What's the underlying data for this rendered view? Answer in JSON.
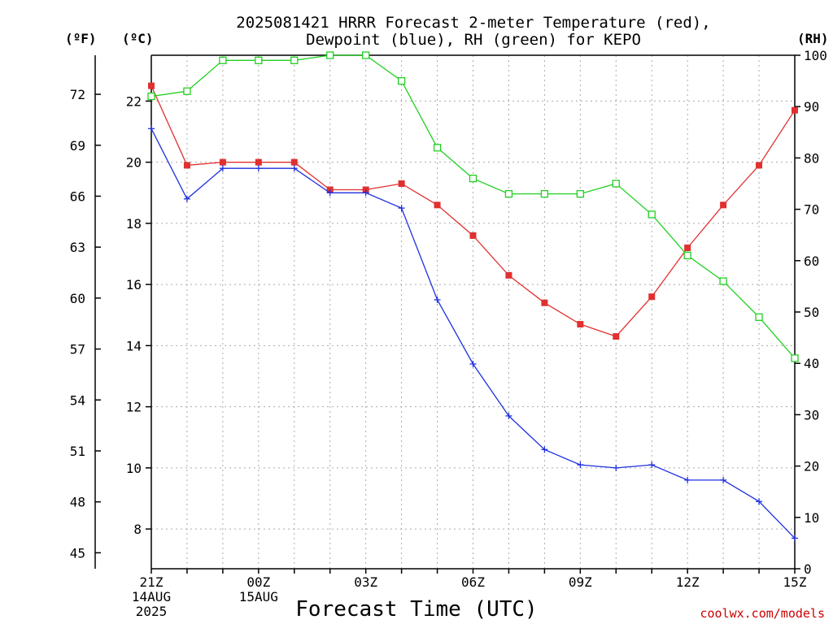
{
  "title": {
    "line1": "2025081421 HRRR Forecast 2-meter Temperature (red),",
    "line2": "Dewpoint (blue), RH (green) for KEPO"
  },
  "units": {
    "fahrenheit": "(ºF)",
    "celsius": "(ºC)",
    "rh": "(RH)"
  },
  "xlabel": "Forecast Time (UTC)",
  "credit": "coolwx.com/models",
  "colors": {
    "temperature": "#e03030",
    "dewpoint": "#2030e0",
    "rh": "#20d020"
  },
  "chart_data": {
    "type": "line",
    "x": [
      0,
      1,
      2,
      3,
      4,
      5,
      6,
      7,
      8,
      9,
      10,
      11,
      12,
      13,
      14,
      15,
      16,
      17,
      18
    ],
    "x_labels": [
      {
        "x": 0,
        "lines": [
          "21Z",
          "14AUG",
          "2025"
        ]
      },
      {
        "x": 3,
        "lines": [
          "00Z",
          "15AUG"
        ]
      },
      {
        "x": 6,
        "lines": [
          "03Z"
        ]
      },
      {
        "x": 9,
        "lines": [
          "06Z"
        ]
      },
      {
        "x": 12,
        "lines": [
          "09Z"
        ]
      },
      {
        "x": 15,
        "lines": [
          "12Z"
        ]
      },
      {
        "x": 18,
        "lines": [
          "15Z"
        ]
      }
    ],
    "xlim": [
      0,
      18
    ],
    "y_celsius": {
      "ylim": [
        6.7,
        23.5
      ],
      "ticks": [
        8,
        10,
        12,
        14,
        16,
        18,
        20,
        22
      ]
    },
    "y_fahrenheit": {
      "ticks": [
        45,
        48,
        51,
        54,
        57,
        60,
        63,
        66,
        69,
        72
      ]
    },
    "y_rh": {
      "ylim": [
        0,
        100
      ],
      "ticks": [
        0,
        10,
        20,
        30,
        40,
        50,
        60,
        70,
        80,
        90,
        100
      ]
    },
    "grid": true,
    "series": [
      {
        "name": "Temperature (red)",
        "key": "temperature",
        "axis": "celsius",
        "marker": "filled-square",
        "values": [
          22.5,
          19.9,
          20.0,
          20.0,
          20.0,
          19.1,
          19.1,
          19.3,
          18.6,
          17.6,
          16.3,
          15.4,
          14.7,
          14.3,
          15.6,
          17.2,
          18.6,
          19.9,
          21.7
        ]
      },
      {
        "name": "Dewpoint (blue)",
        "key": "dewpoint",
        "axis": "celsius",
        "marker": "plus",
        "values": [
          21.1,
          18.8,
          19.8,
          19.8,
          19.8,
          19.0,
          19.0,
          18.5,
          15.5,
          13.4,
          11.7,
          10.6,
          10.1,
          10.0,
          10.1,
          9.6,
          9.6,
          8.9,
          7.7
        ]
      },
      {
        "name": "RH (green)",
        "key": "rh",
        "axis": "rh",
        "marker": "open-square",
        "values": [
          92,
          93,
          99,
          99,
          99,
          100,
          100,
          95,
          82,
          76,
          73,
          73,
          73,
          75,
          69,
          61,
          56,
          49,
          41
        ]
      }
    ]
  }
}
